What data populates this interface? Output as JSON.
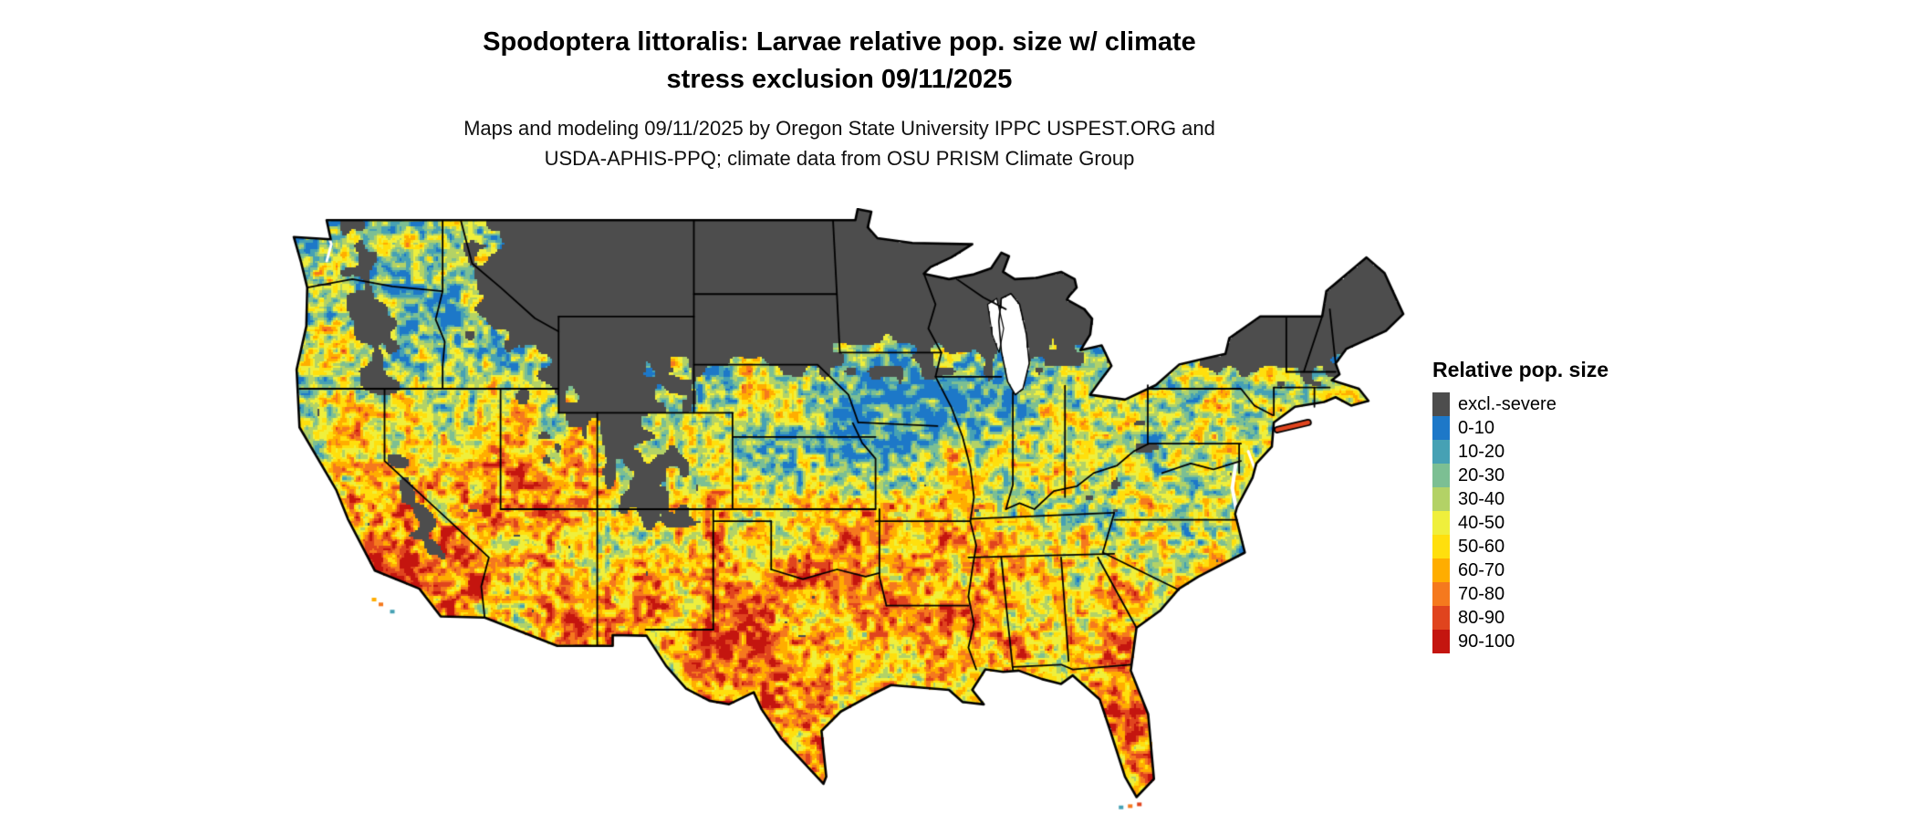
{
  "header": {
    "title_line1": "Spodoptera littoralis: Larvae relative pop. size w/ climate",
    "title_line2": "stress exclusion 09/11/2025",
    "subtitle_line1": "Maps and modeling 09/11/2025 by Oregon State University IPPC USPEST.ORG and",
    "subtitle_line2": "USDA-APHIS-PPQ; climate data from OSU PRISM Climate Group"
  },
  "legend": {
    "title": "Relative pop. size",
    "items": [
      {
        "label": "excl.-severe",
        "color": "#4d4d4d"
      },
      {
        "label": "0-10",
        "color": "#1d78c8"
      },
      {
        "label": "10-20",
        "color": "#46a1b4"
      },
      {
        "label": "20-30",
        "color": "#7cbf93"
      },
      {
        "label": "30-40",
        "color": "#b3d266"
      },
      {
        "label": "40-50",
        "color": "#efef3c"
      },
      {
        "label": "50-60",
        "color": "#ffdf0d"
      },
      {
        "label": "60-70",
        "color": "#ffad00"
      },
      {
        "label": "70-80",
        "color": "#f5791e"
      },
      {
        "label": "80-90",
        "color": "#e0441e"
      },
      {
        "label": "90-100",
        "color": "#c4150f"
      }
    ]
  }
}
